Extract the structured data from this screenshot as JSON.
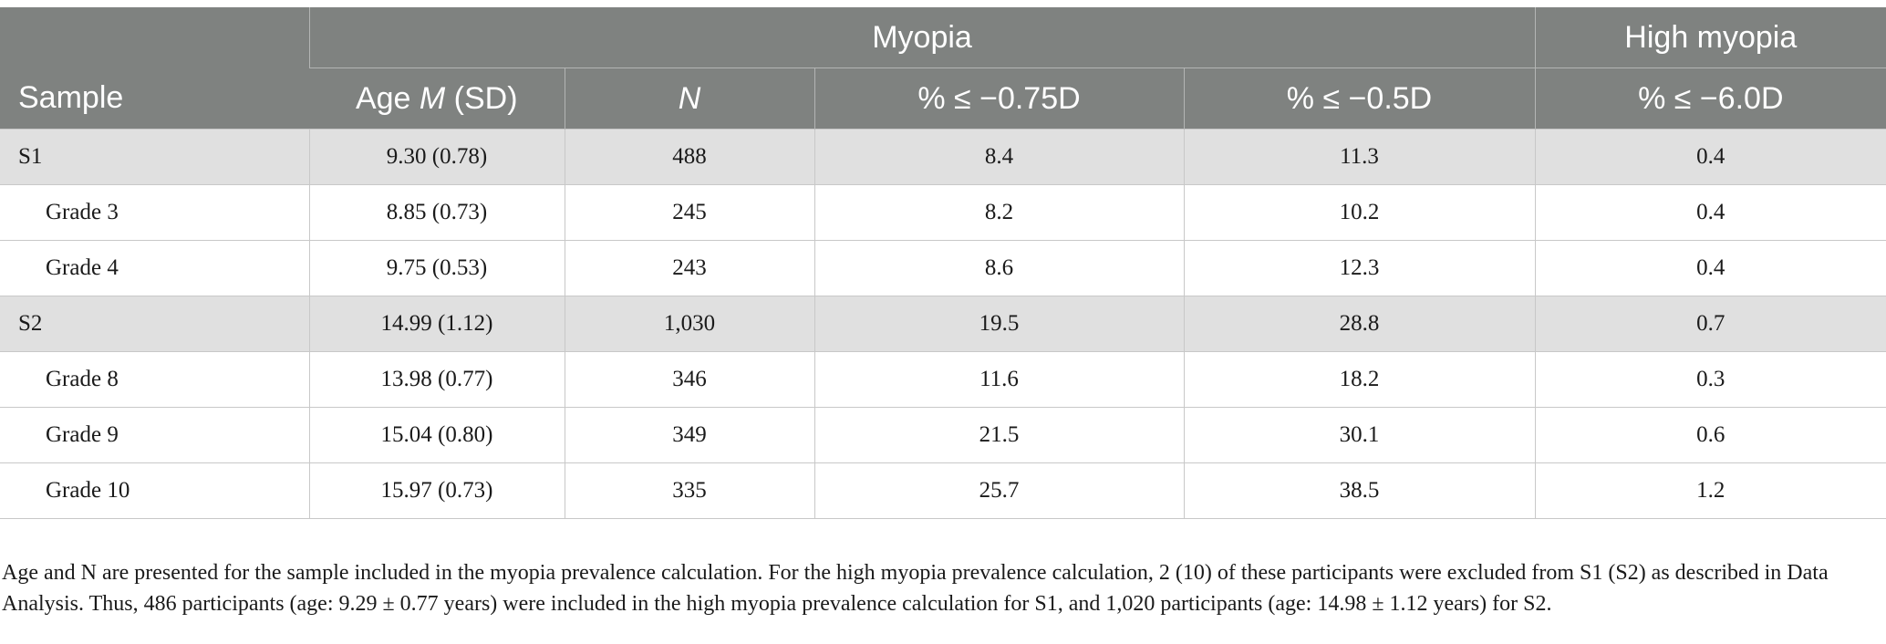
{
  "header": {
    "sample": "Sample",
    "myopia": "Myopia",
    "high_myopia": "High myopia",
    "age_pre": "Age ",
    "age_m": "M",
    "age_post": " (SD)",
    "n": "N",
    "pct_075": "% ≤ −0.75D",
    "pct_05": "% ≤ −0.5D",
    "pct_60": "% ≤ −6.0D"
  },
  "rows": [
    {
      "sample": "S1",
      "age": "9.30 (0.78)",
      "n": "488",
      "m075": "8.4",
      "m05": "11.3",
      "h60": "0.4"
    },
    {
      "sample": "Grade 3",
      "age": "8.85 (0.73)",
      "n": "245",
      "m075": "8.2",
      "m05": "10.2",
      "h60": "0.4"
    },
    {
      "sample": "Grade 4",
      "age": "9.75 (0.53)",
      "n": "243",
      "m075": "8.6",
      "m05": "12.3",
      "h60": "0.4"
    },
    {
      "sample": "S2",
      "age": "14.99 (1.12)",
      "n": "1,030",
      "m075": "19.5",
      "m05": "28.8",
      "h60": "0.7"
    },
    {
      "sample": "Grade 8",
      "age": "13.98 (0.77)",
      "n": "346",
      "m075": "11.6",
      "m05": "18.2",
      "h60": "0.3"
    },
    {
      "sample": "Grade 9",
      "age": "15.04 (0.80)",
      "n": "349",
      "m075": "21.5",
      "m05": "30.1",
      "h60": "0.6"
    },
    {
      "sample": "Grade 10",
      "age": "15.97 (0.73)",
      "n": "335",
      "m075": "25.7",
      "m05": "38.5",
      "h60": "1.2"
    }
  ],
  "footnote": "Age and N are presented for the sample included in the myopia prevalence calculation. For the high myopia prevalence calculation, 2 (10) of these participants were excluded from S1 (S2) as described in Data Analysis. Thus, 486 participants (age: 9.29 ± 0.77 years) were included in the high myopia prevalence calculation for S1, and 1,020 participants (age: 14.98 ± 1.12 years) for S2."
}
